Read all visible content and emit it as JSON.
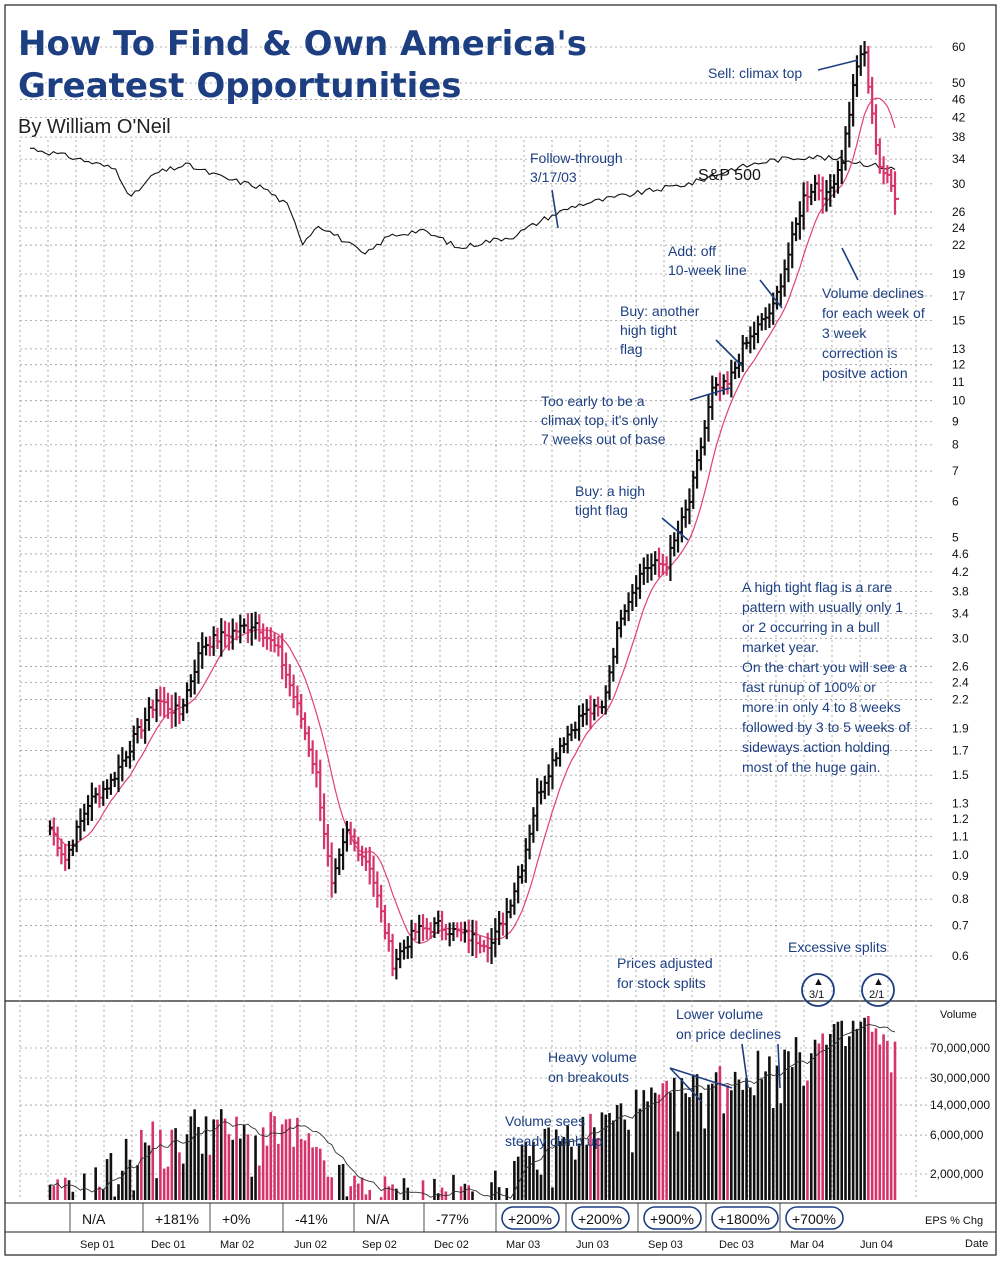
{
  "header": {
    "title_line1": "How To Find & Own America's",
    "title_line2": "Greatest Opportunities",
    "byline": "By William O'Neil"
  },
  "colors": {
    "up_bar": "#111111",
    "down_bar": "#d6336c",
    "moving_average": "#e0407a",
    "annotation": "#1d3f82",
    "sp500": "#111111"
  },
  "annotations": {
    "sell": "Sell: climax top",
    "follow1": "Follow-through",
    "follow2": "3/17/03",
    "sp500": "S&P 500",
    "add1": "Add: off",
    "add2": "10-week line",
    "vol1": "Volume declines",
    "vol2": "for each week of",
    "vol3": "3 week",
    "vol4": "correction is",
    "vol5": "positve action",
    "buy2_1": "Buy: another",
    "buy2_2": "high tight",
    "buy2_3": "flag",
    "early1": "Too early to be a",
    "early2": "climax top, it's only",
    "early3": "7 weeks out of base",
    "buy1_1": "Buy: a high",
    "buy1_2": "tight flag",
    "htf1": "A high tight flag is a rare",
    "htf2": "pattern with usually only 1",
    "htf3": "or 2 occurring in a bull",
    "htf4": "market year.",
    "htf5": "On the chart you will see a",
    "htf6": "fast runup of 100% or",
    "htf7": "more in only 4 to 8 weeks",
    "htf8": "followed by 3 to 5 weeks of",
    "htf9": "sideways action holding",
    "htf10": "most of the huge gain.",
    "adj1": "Prices adjusted",
    "adj2": "for stock splits",
    "excessive": "Excessive splits",
    "split1": "3/1",
    "split2": "2/1",
    "lowvol1": "Lower volume",
    "lowvol2": "on price declines",
    "heavy1": "Heavy volume",
    "heavy2": "on breakouts",
    "steady1": "Volume sees",
    "steady2": "steady climb up"
  },
  "eps_label": "EPS % Chg",
  "date_label": "Date",
  "volume_label": "Volume",
  "chart_data": {
    "type": "bar",
    "subtype": "weekly OHLC price chart (log scale) with volume histogram and 10-week moving average",
    "title": "How To Find & Own America's Greatest Opportunities",
    "price_scale": "log",
    "price_ticks": [
      "60",
      "50",
      "46",
      "42",
      "38",
      "34",
      "30",
      "26",
      "24",
      "22",
      "19",
      "17",
      "15",
      "13",
      "12",
      "11",
      "10",
      "9",
      "8",
      "7",
      "6",
      "5",
      "4.6",
      "4.2",
      "3.8",
      "3.4",
      "3.0",
      "2.6",
      "2.4",
      "2.2",
      "1.9",
      "1.7",
      "1.5",
      "1.3",
      "1.2",
      "1.1",
      "1.0",
      "0.9",
      "0.8",
      "0.7",
      "0.6"
    ],
    "ylim": [
      0.55,
      66
    ],
    "volume_ticks": [
      "70,000,000",
      "30,000,000",
      "14,000,000",
      "6,000,000",
      "2,000,000"
    ],
    "volume_scale": "log",
    "date_labels": [
      "Sep 01",
      "Dec 01",
      "Mar 02",
      "Jun 02",
      "Sep 02",
      "Dec 02",
      "Mar 03",
      "Jun 03",
      "Sep 03",
      "Dec 03",
      "Mar 04",
      "Jun 04"
    ],
    "eps_changes": [
      {
        "value": "N/A",
        "circled": false
      },
      {
        "value": "+181%",
        "circled": false
      },
      {
        "value": "+0%",
        "circled": false
      },
      {
        "value": "-41%",
        "circled": false
      },
      {
        "value": "N/A",
        "circled": false
      },
      {
        "value": "-77%",
        "circled": false
      },
      {
        "value": "+200%",
        "circled": true
      },
      {
        "value": "+200%",
        "circled": true
      },
      {
        "value": "+900%",
        "circled": true
      },
      {
        "value": "+1800%",
        "circled": true
      },
      {
        "value": "+700%",
        "circled": true
      }
    ],
    "price_keypoints": [
      [
        0,
        1.15
      ],
      [
        4,
        0.98
      ],
      [
        10,
        1.3
      ],
      [
        16,
        1.45
      ],
      [
        22,
        1.8
      ],
      [
        28,
        2.2
      ],
      [
        34,
        2.05
      ],
      [
        40,
        2.9
      ],
      [
        46,
        3.05
      ],
      [
        54,
        3.25
      ],
      [
        60,
        2.8
      ],
      [
        66,
        2.0
      ],
      [
        70,
        1.5
      ],
      [
        74,
        0.85
      ],
      [
        78,
        1.12
      ],
      [
        84,
        0.95
      ],
      [
        90,
        0.58
      ],
      [
        96,
        0.68
      ],
      [
        102,
        0.7
      ],
      [
        110,
        0.66
      ],
      [
        116,
        0.64
      ],
      [
        120,
        0.75
      ],
      [
        124,
        0.95
      ],
      [
        128,
        1.35
      ],
      [
        134,
        1.75
      ],
      [
        140,
        2.05
      ],
      [
        145,
        2.1
      ],
      [
        150,
        3.4
      ],
      [
        156,
        4.3
      ],
      [
        162,
        4.4
      ],
      [
        168,
        6.0
      ],
      [
        174,
        10.5
      ],
      [
        178,
        10.8
      ],
      [
        182,
        13.0
      ],
      [
        186,
        14.5
      ],
      [
        190,
        16.0
      ],
      [
        194,
        21.0
      ],
      [
        198,
        28.0
      ],
      [
        201,
        30.0
      ],
      [
        204,
        28.0
      ],
      [
        208,
        34.0
      ],
      [
        212,
        55.0
      ],
      [
        214,
        58.0
      ],
      [
        216,
        42.0
      ],
      [
        218,
        33.0
      ],
      [
        222,
        28.5
      ]
    ],
    "sp500_keypoints": [
      [
        0,
        110
      ],
      [
        12,
        105
      ],
      [
        22,
        100
      ],
      [
        26,
        88
      ],
      [
        32,
        98
      ],
      [
        40,
        102
      ],
      [
        50,
        96
      ],
      [
        60,
        92
      ],
      [
        66,
        85
      ],
      [
        70,
        72
      ],
      [
        74,
        78
      ],
      [
        80,
        73
      ],
      [
        86,
        68
      ],
      [
        92,
        74
      ],
      [
        100,
        76
      ],
      [
        106,
        73
      ],
      [
        110,
        70
      ],
      [
        116,
        72
      ],
      [
        124,
        74
      ],
      [
        132,
        80
      ],
      [
        140,
        85
      ],
      [
        150,
        88
      ],
      [
        160,
        91
      ],
      [
        170,
        94
      ],
      [
        180,
        100
      ],
      [
        190,
        104
      ],
      [
        200,
        106
      ],
      [
        210,
        104
      ],
      [
        222,
        100
      ]
    ],
    "volume_keypoints": [
      [
        0,
        0.9
      ],
      [
        10,
        1.2
      ],
      [
        18,
        2.5
      ],
      [
        26,
        5.0
      ],
      [
        32,
        4.0
      ],
      [
        40,
        9.0
      ],
      [
        48,
        6.0
      ],
      [
        54,
        4.5
      ],
      [
        60,
        7.0
      ],
      [
        66,
        5.0
      ],
      [
        72,
        2.0
      ],
      [
        80,
        1.2
      ],
      [
        90,
        1.0
      ],
      [
        100,
        1.1
      ],
      [
        110,
        1.0
      ],
      [
        118,
        1.2
      ],
      [
        124,
        2.5
      ],
      [
        130,
        4.0
      ],
      [
        138,
        5.5
      ],
      [
        146,
        8.0
      ],
      [
        154,
        12.0
      ],
      [
        162,
        15.0
      ],
      [
        170,
        20.0
      ],
      [
        178,
        28.0
      ],
      [
        186,
        35.0
      ],
      [
        194,
        45.0
      ],
      [
        202,
        70.0
      ],
      [
        210,
        90.0
      ],
      [
        214,
        140.0
      ],
      [
        218,
        70.0
      ],
      [
        222,
        50.0
      ]
    ]
  }
}
